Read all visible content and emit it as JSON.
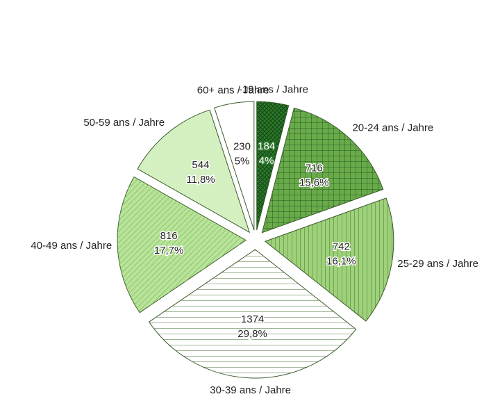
{
  "chart_data": {
    "type": "pie",
    "categories": [
      "-19 ans / Jahre",
      "20-24 ans / Jahre",
      "25-29 ans / Jahre",
      "30-39 ans / Jahre",
      "40-49 ans / Jahre",
      "50-59 ans / Jahre",
      "60+ ans / Jahre"
    ],
    "values": [
      184,
      716,
      742,
      1374,
      816,
      544,
      230
    ],
    "percentages": [
      4,
      15.6,
      16.1,
      29.8,
      17.7,
      11.8,
      5
    ],
    "percentage_labels": [
      "4%",
      "15,6%",
      "16,1%",
      "29,8%",
      "17,7%",
      "11,8%",
      "5%"
    ],
    "colors": [
      "#2f7a2f",
      "#6aaa4a",
      "#9fd07a",
      "#ffffff",
      "#b8e39a",
      "#d4f0c0",
      "#ffffff"
    ],
    "patterns": [
      "crosshatch",
      "grid",
      "vertical",
      "horizontal",
      "diagonal",
      "none",
      "none"
    ]
  }
}
